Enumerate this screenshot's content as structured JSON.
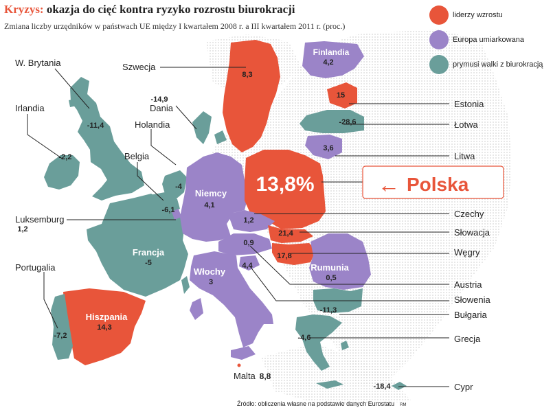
{
  "header": {
    "title_keyword": "Kryzys:",
    "title_rest": " okazja do cięć kontra ryzyko rozrostu biurokracji",
    "subtitle": "Zmiana liczby urzędników w państwach UE między I kwartałem 2008 r. a III kwartałem 2011 r. (proc.)"
  },
  "legend": [
    {
      "label": "liderzy wzrostu",
      "color": "#e8553a"
    },
    {
      "label": "Europa umiarkowana",
      "color": "#9b84c8"
    },
    {
      "label": "prymusi walki z biurokracją",
      "color": "#6a9e9a"
    }
  ],
  "colors": {
    "orange": "#e8553a",
    "purple": "#9b84c8",
    "teal": "#6a9e9a",
    "dots": "#dcdcdc"
  },
  "map_values": {
    "wbrytania": "-11,4",
    "irlandia": "-2,2",
    "szwecja": "8,3",
    "finlandia_name": "Finlandia",
    "finlandia": "4,2",
    "estonia": "15",
    "lotwa": "-28,6",
    "litwa": "3,6",
    "dania": "-14,9",
    "holandia": "-4",
    "belgia": "-6,1",
    "luksemburg": "1,2",
    "niemcy_name": "Niemcy",
    "niemcy": "4,1",
    "polska": "13,8%",
    "czechy": "1,2",
    "slowacja": "21,4",
    "austria": "0,9",
    "wegry": "17,8",
    "slowenia": "4,4",
    "rumunia_name": "Rumunia",
    "rumunia": "0,5",
    "bulgaria": "-11,3",
    "grecja": "-4,6",
    "francja_name": "Francja",
    "francja": "-5",
    "wlochy_name": "Włochy",
    "wlochy": "3",
    "hiszpania_name": "Hiszpania",
    "hiszpania": "14,3",
    "portugalia": "-7,2",
    "malta": "8,8",
    "cypr": "-18,4"
  },
  "country_labels": {
    "wbrytania": "W. Brytania",
    "irlandia": "Irlandia",
    "szwecja": "Szwecja",
    "dania": "Dania",
    "holandia": "Holandia",
    "belgia": "Belgia",
    "luksemburg": "Luksemburg",
    "portugalia": "Portugalia",
    "malta": "Malta",
    "estonia": "Estonia",
    "lotwa": "Łotwa",
    "litwa": "Litwa",
    "czechy": "Czechy",
    "slowacja": "Słowacja",
    "wegry": "Węgry",
    "austria": "Austria",
    "slowenia": "Słowenia",
    "bulgaria": "Bułgaria",
    "grecja": "Grecja",
    "cypr": "Cypr"
  },
  "callout": {
    "arrow": "←",
    "label": "Polska"
  },
  "source": {
    "text": "Źródło: obliczenia własne na podstawie danych Eurostatu",
    "initials": "RM"
  }
}
